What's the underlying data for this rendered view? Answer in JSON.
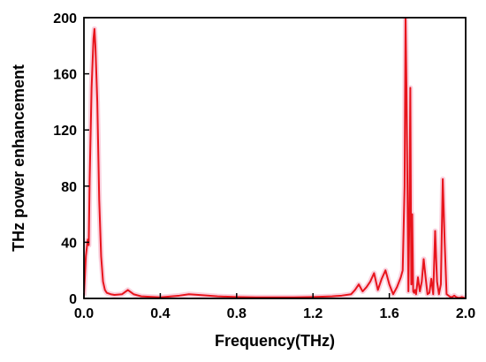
{
  "chart_data": {
    "type": "line",
    "title": "",
    "xlabel": "Frequency(THz)",
    "ylabel": "THz power enhancement",
    "xlim": [
      0.0,
      2.0
    ],
    "ylim": [
      0,
      200
    ],
    "xticks": [
      0.0,
      0.4,
      0.8,
      1.2,
      1.6,
      2.0
    ],
    "xtick_labels": [
      "0.0",
      "0.4",
      "0.8",
      "1.2",
      "1.6",
      "2.0"
    ],
    "yticks": [
      0,
      40,
      80,
      120,
      160,
      200
    ],
    "ytick_labels": [
      "0",
      "40",
      "80",
      "120",
      "160",
      "200"
    ],
    "grid": false,
    "legend": "none",
    "line_color": "#e8141c",
    "shadow_color": "#f39ab6",
    "series": [
      {
        "x": [
          0.0,
          0.01,
          0.02,
          0.025,
          0.03,
          0.04,
          0.05,
          0.055,
          0.06,
          0.07,
          0.08,
          0.09,
          0.1,
          0.11,
          0.12,
          0.14,
          0.16,
          0.2,
          0.23,
          0.26,
          0.3,
          0.4,
          0.5,
          0.55,
          0.6,
          0.7,
          0.8,
          0.9,
          1.0,
          1.1,
          1.2,
          1.3,
          1.35,
          1.4,
          1.42,
          1.44,
          1.46,
          1.48,
          1.5,
          1.52,
          1.54,
          1.56,
          1.58,
          1.6,
          1.62,
          1.64,
          1.66,
          1.67,
          1.68,
          1.685,
          1.69,
          1.7,
          1.705,
          1.71,
          1.715,
          1.72,
          1.725,
          1.73,
          1.735,
          1.74,
          1.75,
          1.76,
          1.77,
          1.78,
          1.79,
          1.8,
          1.81,
          1.82,
          1.83,
          1.84,
          1.85,
          1.86,
          1.87,
          1.88,
          1.89,
          1.9,
          1.91,
          1.92,
          1.93,
          1.935,
          1.94,
          1.95,
          1.96,
          1.97,
          1.98,
          2.0
        ],
        "y": [
          2,
          30,
          42,
          38,
          85,
          150,
          185,
          192,
          180,
          140,
          70,
          30,
          12,
          6,
          4,
          3,
          2.5,
          3,
          6,
          3,
          1.5,
          0.8,
          2,
          3,
          2.5,
          1.5,
          1,
          0.8,
          0.8,
          0.8,
          1,
          1.5,
          2,
          3,
          6,
          10,
          5,
          8,
          12,
          18,
          6,
          14,
          20,
          10,
          3,
          8,
          15,
          20,
          80,
          200,
          150,
          5,
          60,
          150,
          10,
          60,
          5,
          4,
          6,
          3,
          15,
          5,
          12,
          28,
          15,
          3,
          4,
          14,
          3,
          48,
          12,
          3,
          10,
          85,
          40,
          3,
          2,
          1,
          1,
          1.5,
          2,
          1,
          0.5,
          0.5,
          1,
          0
        ]
      }
    ]
  }
}
